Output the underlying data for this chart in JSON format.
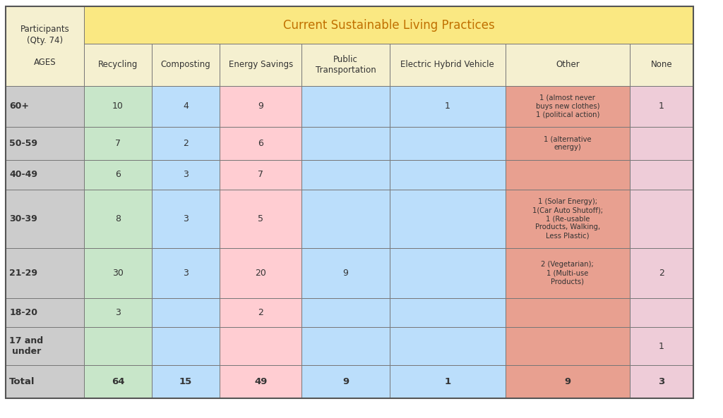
{
  "title": "Current Sustainable Living Practices",
  "header_left_line1": "Participants",
  "header_left_line2": "(Qty. 74)",
  "header_left_line3": "AGES",
  "columns": [
    "Recycling",
    "Composting",
    "Energy Savings",
    "Public\nTransportation",
    "Electric Hybrid Vehicle",
    "Other",
    "None"
  ],
  "rows": [
    {
      "age": "60+",
      "values": [
        "10",
        "4",
        "9",
        "",
        "1",
        "1 (almost never\nbuys new clothes)\n1 (political action)",
        "1"
      ]
    },
    {
      "age": "50-59",
      "values": [
        "7",
        "2",
        "6",
        "",
        "",
        "1 (alternative\nenergy)",
        ""
      ]
    },
    {
      "age": "40-49",
      "values": [
        "6",
        "3",
        "7",
        "",
        "",
        "",
        ""
      ]
    },
    {
      "age": "30-39",
      "values": [
        "8",
        "3",
        "5",
        "",
        "",
        "1 (Solar Energy);\n1(Car Auto Shutoff);\n1 (Re-usable\nProducts, Walking,\nLess Plastic)",
        ""
      ]
    },
    {
      "age": "21-29",
      "values": [
        "30",
        "3",
        "20",
        "9",
        "",
        "2 (Vegetarian);\n1 (Multi-use\nProducts)",
        "2"
      ]
    },
    {
      "age": "18-20",
      "values": [
        "3",
        "",
        "2",
        "",
        "",
        "",
        ""
      ]
    },
    {
      "age": "17 and\nunder",
      "values": [
        "",
        "",
        "",
        "",
        "",
        "",
        "1"
      ]
    }
  ],
  "totals": [
    "64",
    "15",
    "49",
    "9",
    "1",
    "9",
    "3"
  ],
  "header_bg": "#FAE882",
  "header_text_color": "#C07000",
  "col_header_bg": "#F5F0D0",
  "age_col_bg": "#CCCCCC",
  "age_header_bg": "#F5F0D0",
  "recycling_bg": "#C8E6C9",
  "composting_bg": "#BBDEFB",
  "energy_savings_bg": "#FFCDD2",
  "public_transport_bg": "#BBDEFB",
  "electric_vehicle_bg": "#BBDEFB",
  "other_bg": "#E8A090",
  "none_bg": "#EECCD8",
  "total_row_recycling_bg": "#C8E6C9",
  "total_row_composting_bg": "#BBDEFB",
  "total_row_energy_bg": "#FFCDD2",
  "total_row_transport_bg": "#BBDEFB",
  "total_row_vehicle_bg": "#BBDEFB",
  "total_row_other_bg": "#E8A090",
  "total_row_none_bg": "#EECCD8",
  "col_colors": [
    "#C8E6C9",
    "#BBDEFB",
    "#FFCDD2",
    "#BBDEFB",
    "#BBDEFB",
    "#E8A090",
    "#EECCD8"
  ],
  "grid_color": "#888888",
  "text_color": "#333333",
  "fig_width": 10.24,
  "fig_height": 5.93
}
